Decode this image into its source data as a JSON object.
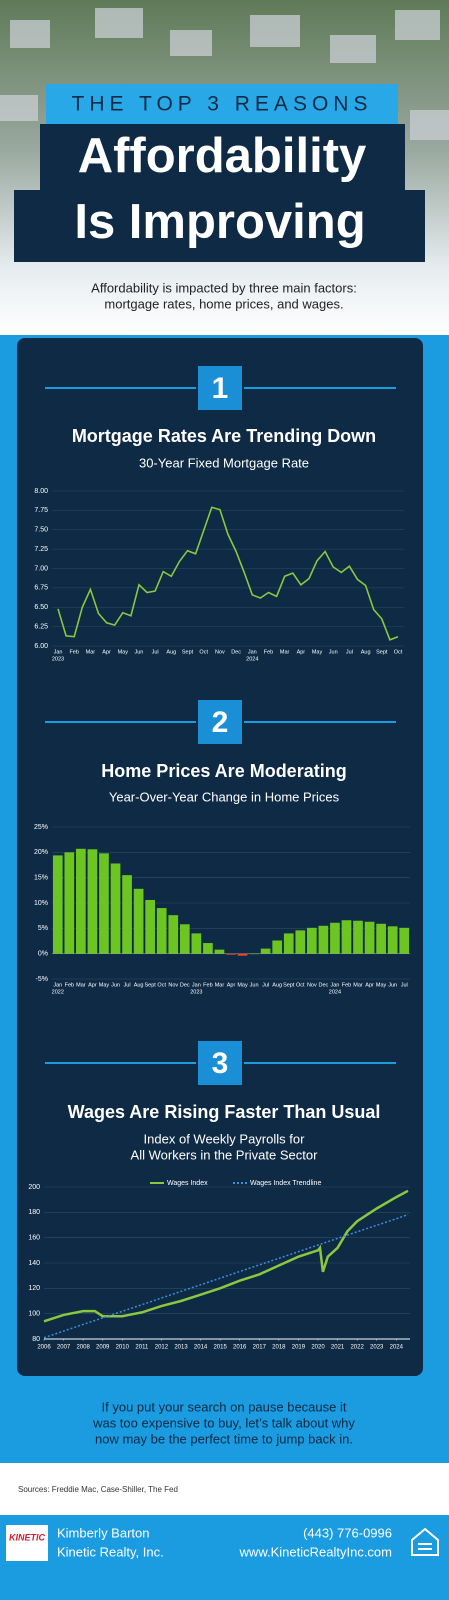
{
  "header": {
    "kicker": "THE TOP 3 REASONS",
    "title_lines": [
      "Affordability",
      "Is Improving"
    ]
  },
  "intro": [
    "Affordability is impacted by three main factors:",
    "mortgage rates, home prices, and wages."
  ],
  "badges": [
    "1",
    "2",
    "3"
  ],
  "chart_data": [
    {
      "type": "line",
      "title": "Mortgage Rates Are Trending Down",
      "subtitle": [
        "30-Year Fixed Mortgage Rate"
      ],
      "categories": [
        "Jan",
        null,
        "Feb",
        null,
        "Mar",
        null,
        "Apr",
        null,
        "May",
        null,
        "Jun",
        null,
        "Jul",
        null,
        "Aug",
        null,
        "Sept",
        null,
        "Oct",
        null,
        "Nov",
        null,
        "Dec",
        null,
        "Jan",
        null,
        "Feb",
        null,
        "Mar",
        null,
        "Apr",
        null,
        "May",
        null,
        "Jun",
        null,
        "Jul",
        null,
        "Aug",
        null,
        "Sept",
        null,
        "Oct"
      ],
      "year_labels": [
        "2023",
        null,
        null,
        null,
        null,
        null,
        null,
        null,
        null,
        null,
        null,
        null,
        null,
        null,
        null,
        null,
        null,
        null,
        null,
        null,
        null,
        null,
        null,
        null,
        "2024",
        null,
        null,
        null,
        null,
        null,
        null,
        null,
        null,
        null,
        null,
        null,
        null,
        null,
        null,
        null,
        null,
        null,
        null
      ],
      "values": [
        6.48,
        6.13,
        6.12,
        6.5,
        6.73,
        6.42,
        6.3,
        6.27,
        6.43,
        6.39,
        6.79,
        6.69,
        6.71,
        6.96,
        6.9,
        7.09,
        7.23,
        7.19,
        7.49,
        7.79,
        7.76,
        7.44,
        7.22,
        6.95,
        6.66,
        6.62,
        6.69,
        6.64,
        6.9,
        6.94,
        6.79,
        6.87,
        7.1,
        7.22,
        7.02,
        6.95,
        7.03,
        6.86,
        6.78,
        6.47,
        6.35,
        6.08,
        6.12
      ],
      "color": "#8dc63f",
      "ylim": [
        6,
        8
      ],
      "yticks": [
        {
          "value": 6,
          "label": "6.00"
        },
        6.25,
        {
          "value": 6.5,
          "label": "6.50"
        },
        6.75,
        {
          "value": 7,
          "label": "7.00"
        },
        7.25,
        {
          "value": 7.5,
          "label": "7.50"
        },
        7.75,
        {
          "value": 8,
          "label": "8.00"
        }
      ],
      "grid": true
    },
    {
      "type": "bar",
      "title": "Home Prices Are Moderating",
      "subtitle": [
        "Year-Over-Year Change in Home Prices"
      ],
      "categories": [
        "Jan",
        "Feb",
        "Mar",
        "Apr",
        "May",
        "Jun",
        "Jul",
        "Aug",
        "Sept",
        "Oct",
        "Nov",
        "Dec",
        "Jan",
        "Feb",
        "Mar",
        "Apr",
        "May",
        "Jun",
        "Jul",
        "Aug",
        "Sept",
        "Oct",
        "Nov",
        "Dec",
        "Jan",
        "Feb",
        "Mar",
        "Apr",
        "May",
        "Jun",
        "Jul"
      ],
      "year_labels": [
        "2022",
        null,
        null,
        null,
        null,
        null,
        null,
        null,
        null,
        null,
        null,
        null,
        "2023",
        null,
        null,
        null,
        null,
        null,
        null,
        null,
        null,
        null,
        null,
        null,
        "2024",
        null,
        null,
        null,
        null,
        null,
        null
      ],
      "values": [
        19.4,
        20.0,
        20.7,
        20.6,
        19.8,
        17.8,
        15.5,
        12.8,
        10.6,
        9.0,
        7.6,
        5.8,
        4.0,
        2.1,
        0.8,
        -0.2,
        -0.4,
        0.0,
        1.0,
        2.6,
        4.0,
        4.6,
        5.1,
        5.5,
        6.1,
        6.6,
        6.5,
        6.3,
        5.9,
        5.4,
        5.1
      ],
      "color": "#6cc521",
      "negative_color": "#e8462a",
      "ylim": [
        -5,
        25
      ],
      "yticks": [
        {
          "value": -5,
          "label": "-5%"
        },
        {
          "value": 0,
          "label": "0%"
        },
        {
          "value": 5,
          "label": "5%"
        },
        {
          "value": 10,
          "label": "10%"
        },
        {
          "value": 15,
          "label": "15%"
        },
        {
          "value": 20,
          "label": "20%"
        },
        {
          "value": 25,
          "label": "25%"
        }
      ],
      "grid": true
    },
    {
      "type": "line",
      "title": "Wages Are Rising Faster Than Usual",
      "subtitle": [
        "Index of Weekly Payrolls for",
        "All Workers in the Private Sector"
      ],
      "x": [
        2006,
        2007,
        2008,
        2008.6,
        2009,
        2010,
        2011,
        2012,
        2013,
        2014,
        2015,
        2016,
        2017,
        2018,
        2019,
        2020,
        2020.1,
        2020.25,
        2020.5,
        2021,
        2021.5,
        2022,
        2023,
        2024,
        2024.6
      ],
      "series": [
        {
          "name": "Wages Index",
          "color": "#8dc63f",
          "dash": false,
          "values": [
            94,
            99,
            102,
            102,
            98,
            98,
            101,
            106,
            110,
            115,
            120,
            126,
            131,
            138,
            145,
            150,
            152,
            133,
            145,
            152,
            165,
            173,
            183,
            192,
            197
          ]
        },
        {
          "name": "Wages Index Trendline",
          "color": "#3b8fdc",
          "dash": true,
          "values": [
            81,
            86.2,
            91.5,
            94.6,
            96.7,
            101.9,
            107.1,
            112.4,
            117.6,
            122.8,
            128,
            133.3,
            138.5,
            143.7,
            148.9,
            154.2,
            154.7,
            155.5,
            156.8,
            159.4,
            162,
            164.6,
            169.8,
            175,
            178.2
          ]
        }
      ],
      "xlim": [
        2006,
        2024.7
      ],
      "xticks": [
        2006,
        2007,
        2008,
        2009,
        2010,
        2011,
        2012,
        2013,
        2014,
        2015,
        2016,
        2017,
        2018,
        2019,
        2020,
        2021,
        2022,
        2023,
        2024
      ],
      "ylim": [
        80,
        200
      ],
      "yticks": [
        80,
        100,
        120,
        140,
        160,
        180,
        200
      ],
      "grid": true,
      "legend": "top"
    }
  ],
  "closing": [
    "If you put your search on pause because it",
    "was too expensive to buy, let’s talk about why",
    "now may be the perfect time to jump back in."
  ],
  "sources": "Sources: Freddie Mac, Case-Shiller, The Fed",
  "footer": {
    "logo": "KINETIC",
    "name": "Kimberly Barton",
    "company": "Kinetic Realty, Inc.",
    "phone": "(443) 776-0996",
    "website": "www.KineticRealtyInc.com"
  }
}
